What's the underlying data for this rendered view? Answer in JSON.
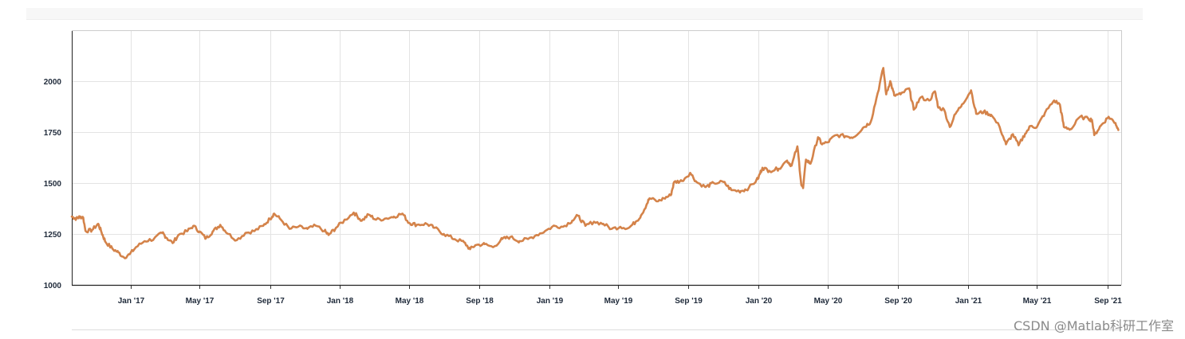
{
  "chart_data": {
    "type": "line",
    "title": "",
    "xlabel": "",
    "ylabel": "",
    "ylim": [
      1000,
      2250
    ],
    "xlim": [
      "2016-09-20",
      "2021-09-25"
    ],
    "grid": true,
    "legend": "none",
    "y_ticks": [
      1000,
      1250,
      1500,
      1750,
      2000
    ],
    "x_ticks": [
      {
        "date": "2017-01-01",
        "label": "Jan '17"
      },
      {
        "date": "2017-05-01",
        "label": "May '17"
      },
      {
        "date": "2017-09-01",
        "label": "Sep '17"
      },
      {
        "date": "2018-01-01",
        "label": "Jan '18"
      },
      {
        "date": "2018-05-01",
        "label": "May '18"
      },
      {
        "date": "2018-09-01",
        "label": "Sep '18"
      },
      {
        "date": "2019-01-01",
        "label": "Jan '19"
      },
      {
        "date": "2019-05-01",
        "label": "May '19"
      },
      {
        "date": "2019-09-01",
        "label": "Sep '19"
      },
      {
        "date": "2020-01-01",
        "label": "Jan '20"
      },
      {
        "date": "2020-05-01",
        "label": "May '20"
      },
      {
        "date": "2020-09-01",
        "label": "Sep '20"
      },
      {
        "date": "2021-01-01",
        "label": "Jan '21"
      },
      {
        "date": "2021-05-01",
        "label": "May '21"
      },
      {
        "date": "2021-09-01",
        "label": "Sep '21"
      }
    ],
    "series": [
      {
        "color": "#d4834a",
        "points": [
          [
            "2016-09-20",
            1335
          ],
          [
            "2016-09-28",
            1325
          ],
          [
            "2016-10-05",
            1335
          ],
          [
            "2016-10-10",
            1330
          ],
          [
            "2016-10-14",
            1265
          ],
          [
            "2016-10-25",
            1268
          ],
          [
            "2016-11-05",
            1300
          ],
          [
            "2016-11-10",
            1265
          ],
          [
            "2016-11-18",
            1210
          ],
          [
            "2016-12-01",
            1175
          ],
          [
            "2016-12-10",
            1160
          ],
          [
            "2016-12-20",
            1135
          ],
          [
            "2016-12-30",
            1150
          ],
          [
            "2017-01-10",
            1185
          ],
          [
            "2017-01-25",
            1215
          ],
          [
            "2017-02-10",
            1225
          ],
          [
            "2017-02-25",
            1255
          ],
          [
            "2017-03-05",
            1230
          ],
          [
            "2017-03-15",
            1205
          ],
          [
            "2017-03-25",
            1245
          ],
          [
            "2017-04-10",
            1265
          ],
          [
            "2017-04-20",
            1290
          ],
          [
            "2017-05-01",
            1262
          ],
          [
            "2017-05-12",
            1228
          ],
          [
            "2017-05-25",
            1265
          ],
          [
            "2017-06-06",
            1295
          ],
          [
            "2017-06-20",
            1250
          ],
          [
            "2017-07-05",
            1220
          ],
          [
            "2017-07-20",
            1255
          ],
          [
            "2017-08-05",
            1265
          ],
          [
            "2017-08-20",
            1290
          ],
          [
            "2017-09-01",
            1325
          ],
          [
            "2017-09-08",
            1350
          ],
          [
            "2017-09-20",
            1320
          ],
          [
            "2017-10-05",
            1275
          ],
          [
            "2017-10-20",
            1285
          ],
          [
            "2017-11-05",
            1275
          ],
          [
            "2017-11-20",
            1290
          ],
          [
            "2017-12-05",
            1265
          ],
          [
            "2017-12-12",
            1245
          ],
          [
            "2017-12-25",
            1280
          ],
          [
            "2018-01-10",
            1320
          ],
          [
            "2018-01-25",
            1355
          ],
          [
            "2018-02-08",
            1315
          ],
          [
            "2018-02-20",
            1345
          ],
          [
            "2018-03-05",
            1320
          ],
          [
            "2018-03-20",
            1325
          ],
          [
            "2018-04-05",
            1335
          ],
          [
            "2018-04-20",
            1350
          ],
          [
            "2018-05-01",
            1305
          ],
          [
            "2018-05-15",
            1295
          ],
          [
            "2018-06-01",
            1300
          ],
          [
            "2018-06-15",
            1280
          ],
          [
            "2018-07-01",
            1250
          ],
          [
            "2018-07-20",
            1225
          ],
          [
            "2018-08-05",
            1210
          ],
          [
            "2018-08-16",
            1175
          ],
          [
            "2018-08-25",
            1195
          ],
          [
            "2018-09-10",
            1200
          ],
          [
            "2018-09-25",
            1185
          ],
          [
            "2018-10-11",
            1225
          ],
          [
            "2018-10-25",
            1235
          ],
          [
            "2018-11-10",
            1215
          ],
          [
            "2018-11-25",
            1225
          ],
          [
            "2018-12-10",
            1245
          ],
          [
            "2018-12-25",
            1265
          ],
          [
            "2019-01-10",
            1290
          ],
          [
            "2019-01-25",
            1285
          ],
          [
            "2019-02-10",
            1315
          ],
          [
            "2019-02-20",
            1340
          ],
          [
            "2019-03-05",
            1290
          ],
          [
            "2019-03-20",
            1310
          ],
          [
            "2019-04-05",
            1300
          ],
          [
            "2019-04-20",
            1275
          ],
          [
            "2019-05-05",
            1285
          ],
          [
            "2019-05-20",
            1280
          ],
          [
            "2019-06-01",
            1310
          ],
          [
            "2019-06-10",
            1340
          ],
          [
            "2019-06-20",
            1395
          ],
          [
            "2019-06-25",
            1425
          ],
          [
            "2019-07-10",
            1410
          ],
          [
            "2019-07-20",
            1425
          ],
          [
            "2019-08-01",
            1440
          ],
          [
            "2019-08-07",
            1505
          ],
          [
            "2019-08-20",
            1510
          ],
          [
            "2019-09-04",
            1550
          ],
          [
            "2019-09-15",
            1505
          ],
          [
            "2019-10-01",
            1480
          ],
          [
            "2019-10-15",
            1500
          ],
          [
            "2019-11-01",
            1505
          ],
          [
            "2019-11-15",
            1465
          ],
          [
            "2019-12-01",
            1460
          ],
          [
            "2019-12-15",
            1475
          ],
          [
            "2019-12-31",
            1520
          ],
          [
            "2020-01-08",
            1575
          ],
          [
            "2020-01-20",
            1560
          ],
          [
            "2020-02-05",
            1570
          ],
          [
            "2020-02-20",
            1610
          ],
          [
            "2020-02-28",
            1585
          ],
          [
            "2020-03-09",
            1680
          ],
          [
            "2020-03-16",
            1490
          ],
          [
            "2020-03-19",
            1475
          ],
          [
            "2020-03-24",
            1615
          ],
          [
            "2020-04-01",
            1595
          ],
          [
            "2020-04-14",
            1725
          ],
          [
            "2020-04-21",
            1690
          ],
          [
            "2020-05-01",
            1700
          ],
          [
            "2020-05-15",
            1735
          ],
          [
            "2020-06-01",
            1730
          ],
          [
            "2020-06-15",
            1725
          ],
          [
            "2020-07-01",
            1770
          ],
          [
            "2020-07-15",
            1800
          ],
          [
            "2020-07-27",
            1940
          ],
          [
            "2020-08-06",
            2065
          ],
          [
            "2020-08-11",
            1935
          ],
          [
            "2020-08-18",
            2000
          ],
          [
            "2020-08-25",
            1930
          ],
          [
            "2020-09-05",
            1935
          ],
          [
            "2020-09-20",
            1965
          ],
          [
            "2020-09-28",
            1860
          ],
          [
            "2020-10-10",
            1920
          ],
          [
            "2020-10-25",
            1905
          ],
          [
            "2020-11-04",
            1950
          ],
          [
            "2020-11-10",
            1870
          ],
          [
            "2020-11-20",
            1860
          ],
          [
            "2020-11-30",
            1775
          ],
          [
            "2020-12-10",
            1840
          ],
          [
            "2020-12-21",
            1885
          ],
          [
            "2021-01-06",
            1955
          ],
          [
            "2021-01-15",
            1840
          ],
          [
            "2021-01-28",
            1850
          ],
          [
            "2021-02-10",
            1835
          ],
          [
            "2021-02-25",
            1775
          ],
          [
            "2021-03-08",
            1690
          ],
          [
            "2021-03-20",
            1740
          ],
          [
            "2021-03-30",
            1685
          ],
          [
            "2021-04-10",
            1740
          ],
          [
            "2021-04-20",
            1780
          ],
          [
            "2021-05-01",
            1775
          ],
          [
            "2021-05-15",
            1845
          ],
          [
            "2021-05-31",
            1905
          ],
          [
            "2021-06-10",
            1885
          ],
          [
            "2021-06-17",
            1775
          ],
          [
            "2021-06-30",
            1765
          ],
          [
            "2021-07-15",
            1825
          ],
          [
            "2021-07-30",
            1815
          ],
          [
            "2021-08-05",
            1810
          ],
          [
            "2021-08-09",
            1735
          ],
          [
            "2021-08-20",
            1780
          ],
          [
            "2021-09-03",
            1825
          ],
          [
            "2021-09-15",
            1795
          ],
          [
            "2021-09-20",
            1760
          ]
        ]
      }
    ]
  },
  "watermark": "CSDN @Matlab科研工作室"
}
